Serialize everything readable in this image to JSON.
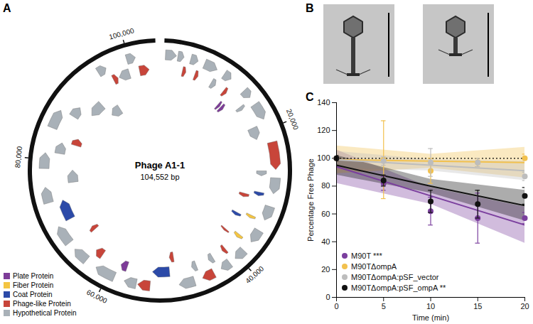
{
  "chart_data": [
    {
      "type": "genome_map",
      "panel": "A",
      "title": "Phage A1-1",
      "subtitle": "104,552 bp",
      "genome_length": 104552,
      "ticks": [
        {
          "value": 20000,
          "label": "20,000"
        },
        {
          "value": 40000,
          "label": "40,000"
        },
        {
          "value": 60000,
          "label": "60,000"
        },
        {
          "value": 80000,
          "label": "80,000"
        },
        {
          "value": 100000,
          "label": "100,000"
        }
      ],
      "categories": [
        "Plate Protein",
        "Fiber Protein",
        "Coat Protein",
        "Phage-like Protein",
        "Hypothetical Protein"
      ],
      "colors": [
        "#7d3c98",
        "#f4c542",
        "#2c4aa8",
        "#c8453a",
        "#a9b1b8"
      ],
      "genes": [
        {
          "start": 800,
          "end": 2400,
          "strand": 1,
          "frame": 1,
          "category": "Hypothetical Protein"
        },
        {
          "start": 2600,
          "end": 3500,
          "strand": 1,
          "frame": 1,
          "category": "Hypothetical Protein"
        },
        {
          "start": 3700,
          "end": 4300,
          "strand": 1,
          "frame": 2,
          "category": "Phage-like Protein"
        },
        {
          "start": 4500,
          "end": 5600,
          "strand": 1,
          "frame": 1,
          "category": "Hypothetical Protein"
        },
        {
          "start": 5800,
          "end": 6400,
          "strand": 1,
          "frame": 2,
          "category": "Phage-like Protein"
        },
        {
          "start": 6600,
          "end": 8600,
          "strand": 1,
          "frame": 1,
          "category": "Hypothetical Protein"
        },
        {
          "start": 8800,
          "end": 9600,
          "strand": 1,
          "frame": 2,
          "category": "Hypothetical Protein"
        },
        {
          "start": 9800,
          "end": 11000,
          "strand": 1,
          "frame": 1,
          "category": "Hypothetical Protein"
        },
        {
          "start": 11200,
          "end": 11800,
          "strand": 1,
          "frame": 2,
          "category": "Phage-like Protein"
        },
        {
          "start": 12000,
          "end": 12500,
          "strand": 1,
          "frame": 3,
          "category": "Plate Protein"
        },
        {
          "start": 12700,
          "end": 13300,
          "strand": 1,
          "frame": 3,
          "category": "Plate Protein"
        },
        {
          "start": 13500,
          "end": 14800,
          "strand": 1,
          "frame": 1,
          "category": "Hypothetical Protein"
        },
        {
          "start": 15000,
          "end": 15600,
          "strand": 1,
          "frame": 2,
          "category": "Hypothetical Protein"
        },
        {
          "start": 16000,
          "end": 18500,
          "strand": 1,
          "frame": 1,
          "category": "Hypothetical Protein"
        },
        {
          "start": 19000,
          "end": 21000,
          "strand": 1,
          "frame": 2,
          "category": "Hypothetical Protein"
        },
        {
          "start": 22000,
          "end": 26000,
          "strand": 1,
          "frame": 1,
          "category": "Phage-like Protein"
        },
        {
          "start": 26200,
          "end": 27000,
          "strand": 1,
          "frame": 2,
          "category": "Hypothetical Protein"
        },
        {
          "start": 27200,
          "end": 29500,
          "strand": 1,
          "frame": 1,
          "category": "Hypothetical Protein"
        },
        {
          "start": 29700,
          "end": 30300,
          "strand": 1,
          "frame": 2,
          "category": "Coat Protein"
        },
        {
          "start": 30500,
          "end": 31200,
          "strand": 1,
          "frame": 3,
          "category": "Phage-like Protein"
        },
        {
          "start": 31400,
          "end": 33500,
          "strand": 1,
          "frame": 1,
          "category": "Hypothetical Protein"
        },
        {
          "start": 33700,
          "end": 34200,
          "strand": 1,
          "frame": 2,
          "category": "Fiber Protein"
        },
        {
          "start": 34400,
          "end": 35000,
          "strand": 1,
          "frame": 3,
          "category": "Coat Protein"
        },
        {
          "start": 35200,
          "end": 37200,
          "strand": 1,
          "frame": 1,
          "category": "Hypothetical Protein"
        },
        {
          "start": 37400,
          "end": 38000,
          "strand": 1,
          "frame": 2,
          "category": "Fiber Protein"
        },
        {
          "start": 38200,
          "end": 38600,
          "strand": 1,
          "frame": 3,
          "category": "Phage-like Protein"
        },
        {
          "start": 38800,
          "end": 40500,
          "strand": 1,
          "frame": 1,
          "category": "Hypothetical Protein"
        },
        {
          "start": 40700,
          "end": 41300,
          "strand": 1,
          "frame": 2,
          "category": "Phage-like Protein"
        },
        {
          "start": 41500,
          "end": 43000,
          "strand": 1,
          "frame": 1,
          "category": "Hypothetical Protein"
        },
        {
          "start": 43200,
          "end": 44000,
          "strand": 1,
          "frame": 2,
          "category": "Hypothetical Protein"
        },
        {
          "start": 44200,
          "end": 46000,
          "strand": 1,
          "frame": 1,
          "category": "Phage-like Protein"
        },
        {
          "start": 46200,
          "end": 47000,
          "strand": 1,
          "frame": 2,
          "category": "Hypothetical Protein"
        },
        {
          "start": 47200,
          "end": 49500,
          "strand": 1,
          "frame": 1,
          "category": "Hypothetical Protein"
        },
        {
          "start": 49700,
          "end": 50500,
          "strand": 1,
          "frame": 3,
          "category": "Phage-like Protein"
        },
        {
          "start": 50700,
          "end": 53500,
          "strand": 1,
          "frame": 2,
          "category": "Coat Protein"
        },
        {
          "start": 53700,
          "end": 55500,
          "strand": 1,
          "frame": 1,
          "category": "Phage-like Protein"
        },
        {
          "start": 55700,
          "end": 57500,
          "strand": 1,
          "frame": 1,
          "category": "Hypothetical Protein"
        },
        {
          "start": 57700,
          "end": 58800,
          "strand": 1,
          "frame": 2,
          "category": "Plate Protein"
        },
        {
          "start": 59000,
          "end": 62000,
          "strand": 1,
          "frame": 1,
          "category": "Hypothetical Protein"
        },
        {
          "start": 62200,
          "end": 63500,
          "strand": 1,
          "frame": 2,
          "category": "Phage-like Protein"
        },
        {
          "start": 63700,
          "end": 66000,
          "strand": 1,
          "frame": 1,
          "category": "Hypothetical Protein"
        },
        {
          "start": 66200,
          "end": 67000,
          "strand": 1,
          "frame": 3,
          "category": "Phage-like Protein"
        },
        {
          "start": 67200,
          "end": 70000,
          "strand": 1,
          "frame": 1,
          "category": "Hypothetical Protein"
        },
        {
          "start": 70200,
          "end": 73500,
          "strand": 1,
          "frame": 2,
          "category": "Coat Protein"
        },
        {
          "start": 73700,
          "end": 76000,
          "strand": 1,
          "frame": 1,
          "category": "Hypothetical Protein"
        },
        {
          "start": 76200,
          "end": 78500,
          "strand": 1,
          "frame": 3,
          "category": "Hypothetical Protein"
        },
        {
          "start": 78700,
          "end": 81000,
          "strand": 1,
          "frame": 1,
          "category": "Hypothetical Protein"
        },
        {
          "start": 81200,
          "end": 83000,
          "strand": 1,
          "frame": 2,
          "category": "Hypothetical Protein"
        },
        {
          "start": 83200,
          "end": 84500,
          "strand": 1,
          "frame": 3,
          "category": "Phage-like Protein"
        },
        {
          "start": 84700,
          "end": 87500,
          "strand": 1,
          "frame": 1,
          "category": "Hypothetical Protein"
        },
        {
          "start": 87700,
          "end": 89500,
          "strand": 1,
          "frame": 2,
          "category": "Hypothetical Protein"
        },
        {
          "start": 89700,
          "end": 92500,
          "strand": -1,
          "frame": 3,
          "category": "Hypothetical Protein"
        },
        {
          "start": 92700,
          "end": 95000,
          "strand": -1,
          "frame": 4,
          "category": "Hypothetical Protein"
        },
        {
          "start": 95200,
          "end": 96500,
          "strand": 1,
          "frame": 1,
          "category": "Hypothetical Protein"
        },
        {
          "start": 96700,
          "end": 97500,
          "strand": 1,
          "frame": 2,
          "category": "Phage-like Protein"
        },
        {
          "start": 97700,
          "end": 99500,
          "strand": -1,
          "frame": 2,
          "category": "Hypothetical Protein"
        },
        {
          "start": 99700,
          "end": 101000,
          "strand": 1,
          "frame": 1,
          "category": "Hypothetical Protein"
        },
        {
          "start": 101200,
          "end": 102800,
          "strand": 1,
          "frame": 2,
          "category": "Phage-like Protein"
        }
      ]
    },
    {
      "type": "micrograph",
      "panel": "B",
      "images": 2
    },
    {
      "type": "line",
      "panel": "C",
      "x_label": "Time (min)",
      "y_label": "Percentage Free Phage",
      "xlim": [
        0,
        20
      ],
      "xticks": [
        0,
        5,
        10,
        15,
        20
      ],
      "ylim": [
        0,
        140
      ],
      "yticks": [
        0,
        20,
        40,
        60,
        80,
        100,
        120,
        140
      ],
      "grid": false,
      "legend": "bottom-left",
      "marker": "circle",
      "reference": 100,
      "x": [
        0,
        5,
        10,
        15,
        20
      ],
      "series": [
        {
          "name": "M90T ***",
          "color": "#7b3f9e",
          "values": [
            100,
            82,
            62,
            57,
            57
          ],
          "errors": [
            2,
            5,
            10,
            18,
            4
          ],
          "fit": {
            "x": [
              0,
              10,
              20
            ],
            "values": [
              94,
              73,
              52
            ],
            "lower": [
              82,
              67,
              39
            ],
            "upper": [
              106,
              79,
              65
            ]
          }
        },
        {
          "name": "M90TΔompA",
          "color": "#f2c14e",
          "values": [
            100,
            99,
            91,
            97,
            100
          ],
          "errors": [
            2,
            28,
            9,
            3,
            3
          ],
          "fit": {
            "x": [
              0,
              10,
              20
            ],
            "values": [
              99,
              98,
              97
            ],
            "lower": [
              89,
              93,
              86
            ],
            "upper": [
              109,
              103,
              108
            ]
          }
        },
        {
          "name": "M90TΔompA:pSF_vector",
          "color": "#bdbdbd",
          "values": [
            100,
            98,
            97,
            97,
            87
          ],
          "errors": [
            2,
            3,
            10,
            3,
            3
          ],
          "fit": {
            "x": [
              0,
              10,
              20
            ],
            "values": [
              99,
              95,
              91
            ],
            "lower": [
              93,
              91,
              84
            ],
            "upper": [
              105,
              99,
              98
            ]
          }
        },
        {
          "name": "M90TΔompA:pSF_ompA **",
          "color": "#111111",
          "values": [
            100,
            84,
            69,
            67,
            73
          ],
          "errors": [
            2,
            4,
            8,
            10,
            6
          ],
          "fit": {
            "x": [
              0,
              10,
              20
            ],
            "values": [
              95,
              80,
              66
            ],
            "lower": [
              88,
              75,
              55
            ],
            "upper": [
              102,
              85,
              77
            ]
          }
        }
      ]
    }
  ]
}
